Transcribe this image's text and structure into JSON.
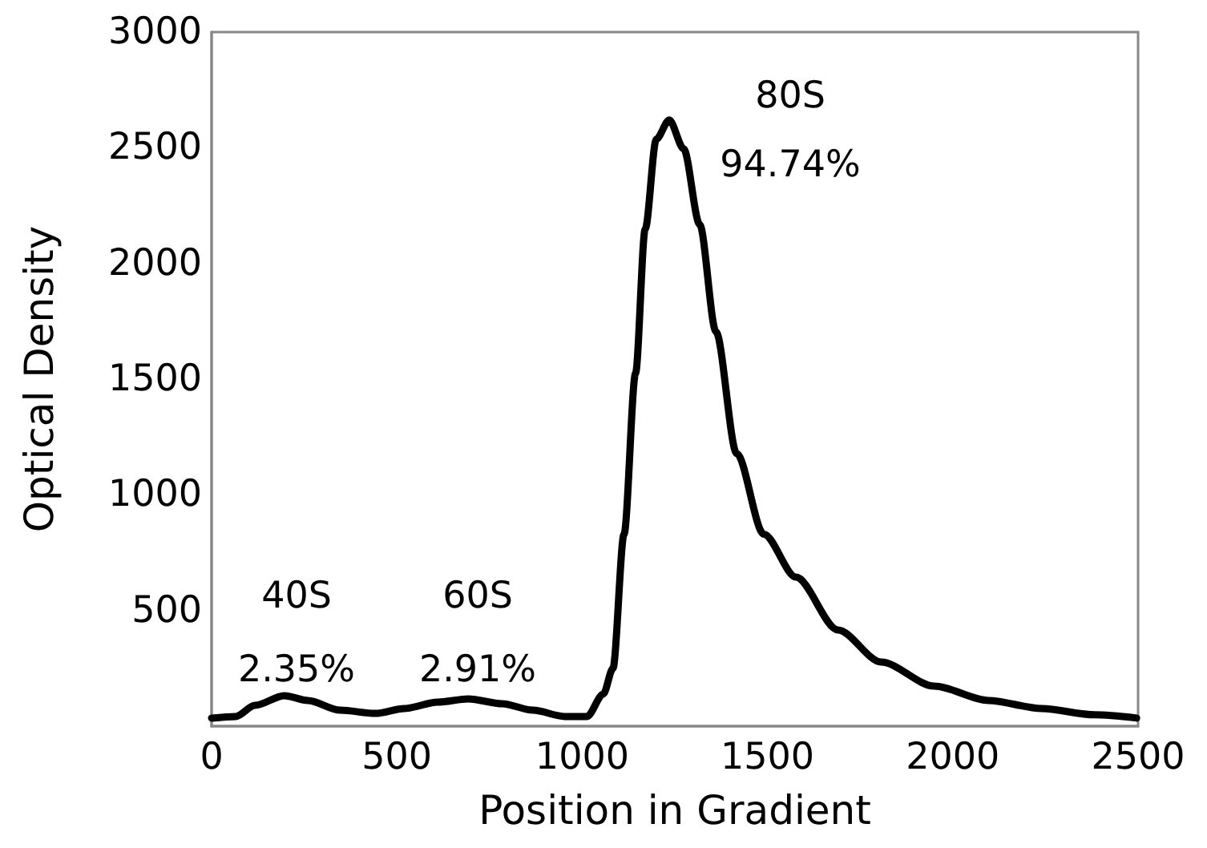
{
  "chart_data": {
    "type": "line",
    "xlabel": "Position in Gradient",
    "ylabel": "Optical Density",
    "x": [
      0,
      65,
      117,
      196,
      260,
      347,
      442,
      520,
      610,
      693,
      784,
      867,
      953,
      1013,
      1057,
      1083,
      1113,
      1144,
      1170,
      1200,
      1235,
      1274,
      1317,
      1361,
      1417,
      1490,
      1577,
      1690,
      1807,
      1950,
      2097,
      2240,
      2383,
      2496
    ],
    "series": [
      {
        "color": "#000000",
        "values": [
          35,
          42,
          90,
          132,
          111,
          69,
          55,
          76,
          104,
          118,
          97,
          69,
          42,
          42,
          139,
          250,
          830,
          1525,
          2148,
          2537,
          2620,
          2495,
          2169,
          1705,
          1178,
          830,
          644,
          416,
          277,
          173,
          111,
          76,
          49,
          35
        ]
      }
    ],
    "xlim": [
      0,
      2500
    ],
    "xticks": [
      0,
      500,
      1000,
      1500,
      2000,
      2500
    ],
    "ylim": [
      0,
      3000
    ],
    "yticks": [
      500,
      1000,
      1500,
      2000,
      2500,
      3000
    ],
    "grid": false,
    "marker": "none",
    "line_style": "solid",
    "annotations": [
      "40S",
      "2.35%",
      "60S",
      "2.91%",
      "80S",
      "94.74%"
    ]
  }
}
